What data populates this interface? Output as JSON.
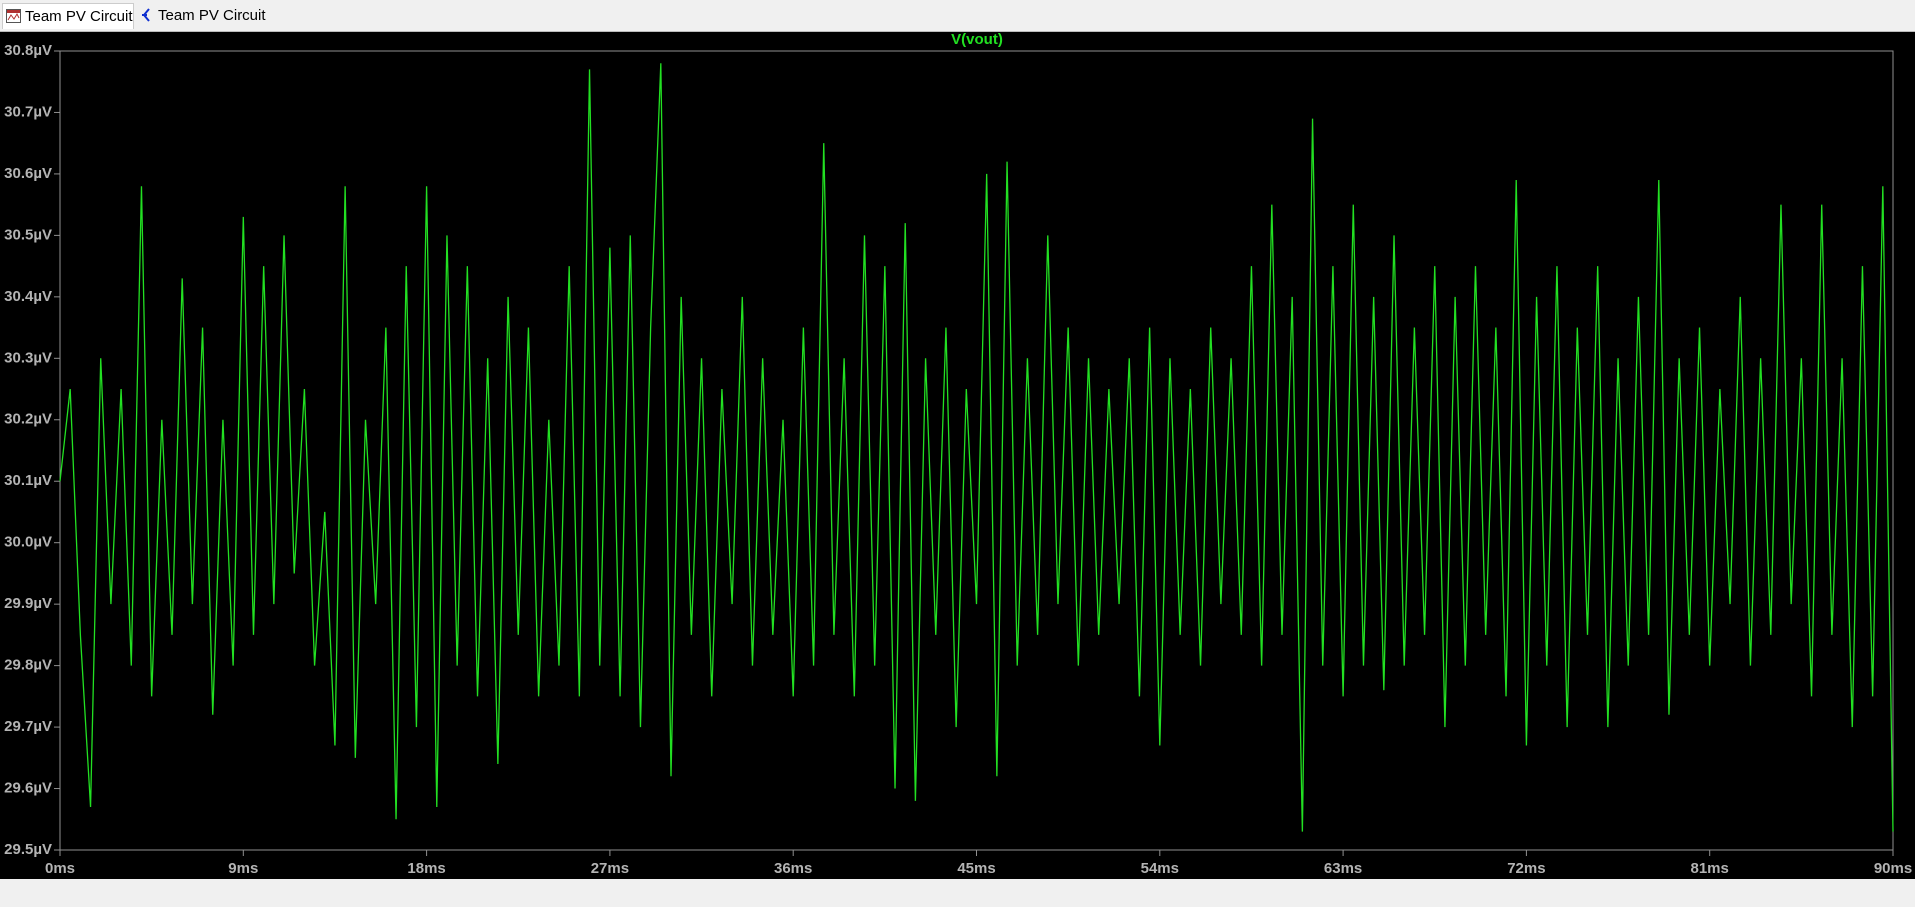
{
  "tabs": [
    "Team PV Circuit",
    "Team PV Circuit"
  ],
  "chart_data": {
    "type": "line",
    "title": "V(vout)",
    "x": [
      0,
      0.5,
      1,
      1.5,
      2,
      2.5,
      3,
      3.5,
      4,
      4.5,
      5,
      5.5,
      6,
      6.5,
      7,
      7.5,
      8,
      8.5,
      9,
      9.5,
      10,
      10.5,
      11,
      11.5,
      12,
      12.5,
      13,
      13.5,
      14,
      14.5,
      15,
      15.5,
      16,
      16.5,
      17,
      17.5,
      18,
      18.5,
      19,
      19.5,
      20,
      20.5,
      21,
      21.5,
      22,
      22.5,
      23,
      23.5,
      24,
      24.5,
      25,
      25.5,
      26,
      26.5,
      27,
      27.5,
      28,
      28.5,
      29,
      29.5,
      30,
      30.5,
      31,
      31.5,
      32,
      32.5,
      33,
      33.5,
      34,
      34.5,
      35,
      35.5,
      36,
      36.5,
      37,
      37.5,
      38,
      38.5,
      39,
      39.5,
      40,
      40.5,
      41,
      41.5,
      42,
      42.5,
      43,
      43.5,
      44,
      44.5,
      45,
      45.5,
      46,
      46.5,
      47,
      47.5,
      48,
      48.5,
      49,
      49.5,
      50,
      50.5,
      51,
      51.5,
      52,
      52.5,
      53,
      53.5,
      54,
      54.5,
      55,
      55.5,
      56,
      56.5,
      57,
      57.5,
      58,
      58.5,
      59,
      59.5,
      60,
      60.5,
      61,
      61.5,
      62,
      62.5,
      63,
      63.5,
      64,
      64.5,
      65,
      65.5,
      66,
      66.5,
      67,
      67.5,
      68,
      68.5,
      69,
      69.5,
      70,
      70.5,
      71,
      71.5,
      72,
      72.5,
      73,
      73.5,
      74,
      74.5,
      75,
      75.5,
      76,
      76.5,
      77,
      77.5,
      78,
      78.5,
      79,
      79.5,
      80,
      80.5,
      81,
      81.5,
      82,
      82.5,
      83,
      83.5,
      84,
      84.5,
      85,
      85.5,
      86,
      86.5,
      87,
      87.5,
      88,
      88.5,
      89,
      89.5,
      90
    ],
    "series": [
      {
        "name": "V(vout)",
        "color": "#22e022",
        "values": [
          30.1,
          30.25,
          29.85,
          29.57,
          30.3,
          29.9,
          30.25,
          29.8,
          30.58,
          29.75,
          30.2,
          29.85,
          30.43,
          29.9,
          30.35,
          29.72,
          30.2,
          29.8,
          30.53,
          29.85,
          30.45,
          29.9,
          30.5,
          29.95,
          30.25,
          29.8,
          30.05,
          29.67,
          30.58,
          29.65,
          30.2,
          29.9,
          30.35,
          29.55,
          30.45,
          29.7,
          30.58,
          29.57,
          30.5,
          29.8,
          30.45,
          29.75,
          30.3,
          29.64,
          30.4,
          29.85,
          30.35,
          29.75,
          30.2,
          29.8,
          30.45,
          29.75,
          30.77,
          29.8,
          30.48,
          29.75,
          30.5,
          29.7,
          30.35,
          30.78,
          29.62,
          30.4,
          29.85,
          30.3,
          29.75,
          30.25,
          29.9,
          30.4,
          29.8,
          30.3,
          29.85,
          30.2,
          29.75,
          30.35,
          29.8,
          30.65,
          29.85,
          30.3,
          29.75,
          30.5,
          29.8,
          30.45,
          29.6,
          30.52,
          29.58,
          30.3,
          29.85,
          30.35,
          29.7,
          30.25,
          29.9,
          30.6,
          29.62,
          30.62,
          29.8,
          30.3,
          29.85,
          30.5,
          29.9,
          30.35,
          29.8,
          30.3,
          29.85,
          30.25,
          29.9,
          30.3,
          29.75,
          30.35,
          29.67,
          30.3,
          29.85,
          30.25,
          29.8,
          30.35,
          29.9,
          30.3,
          29.85,
          30.45,
          29.8,
          30.55,
          29.85,
          30.4,
          29.53,
          30.69,
          29.8,
          30.45,
          29.75,
          30.55,
          29.8,
          30.4,
          29.76,
          30.5,
          29.8,
          30.35,
          29.85,
          30.45,
          29.7,
          30.4,
          29.8,
          30.45,
          29.85,
          30.35,
          29.75,
          30.59,
          29.67,
          30.4,
          29.8,
          30.45,
          29.7,
          30.35,
          29.85,
          30.45,
          29.7,
          30.3,
          29.8,
          30.4,
          29.85,
          30.59,
          29.72,
          30.3,
          29.85,
          30.35,
          29.8,
          30.25,
          29.9,
          30.4,
          29.8,
          30.3,
          29.85,
          30.55,
          29.9,
          30.3,
          29.75,
          30.55,
          29.85,
          30.3,
          29.7,
          30.45,
          29.75,
          30.58,
          29.53
        ]
      }
    ],
    "xlim": [
      0,
      90
    ],
    "xticks": [
      {
        "value": 0,
        "label": "0ms"
      },
      {
        "value": 9,
        "label": "9ms"
      },
      {
        "value": 18,
        "label": "18ms"
      },
      {
        "value": 27,
        "label": "27ms"
      },
      {
        "value": 36,
        "label": "36ms"
      },
      {
        "value": 45,
        "label": "45ms"
      },
      {
        "value": 54,
        "label": "54ms"
      },
      {
        "value": 63,
        "label": "63ms"
      },
      {
        "value": 72,
        "label": "72ms"
      },
      {
        "value": 81,
        "label": "81ms"
      },
      {
        "value": 90,
        "label": "90ms"
      }
    ],
    "ylim": [
      29.5,
      30.8
    ],
    "yticks": [
      {
        "value": 29.5,
        "label": "29.5µV"
      },
      {
        "value": 29.6,
        "label": "29.6µV"
      },
      {
        "value": 29.7,
        "label": "29.7µV"
      },
      {
        "value": 29.8,
        "label": "29.8µV"
      },
      {
        "value": 29.9,
        "label": "29.9µV"
      },
      {
        "value": 30.0,
        "label": "30.0µV"
      },
      {
        "value": 30.1,
        "label": "30.1µV"
      },
      {
        "value": 30.2,
        "label": "30.2µV"
      },
      {
        "value": 30.3,
        "label": "30.3µV"
      },
      {
        "value": 30.4,
        "label": "30.4µV"
      },
      {
        "value": 30.5,
        "label": "30.5µV"
      },
      {
        "value": 30.6,
        "label": "30.6µV"
      },
      {
        "value": 30.7,
        "label": "30.7µV"
      },
      {
        "value": 30.8,
        "label": "30.8µV"
      }
    ],
    "grid": false
  }
}
